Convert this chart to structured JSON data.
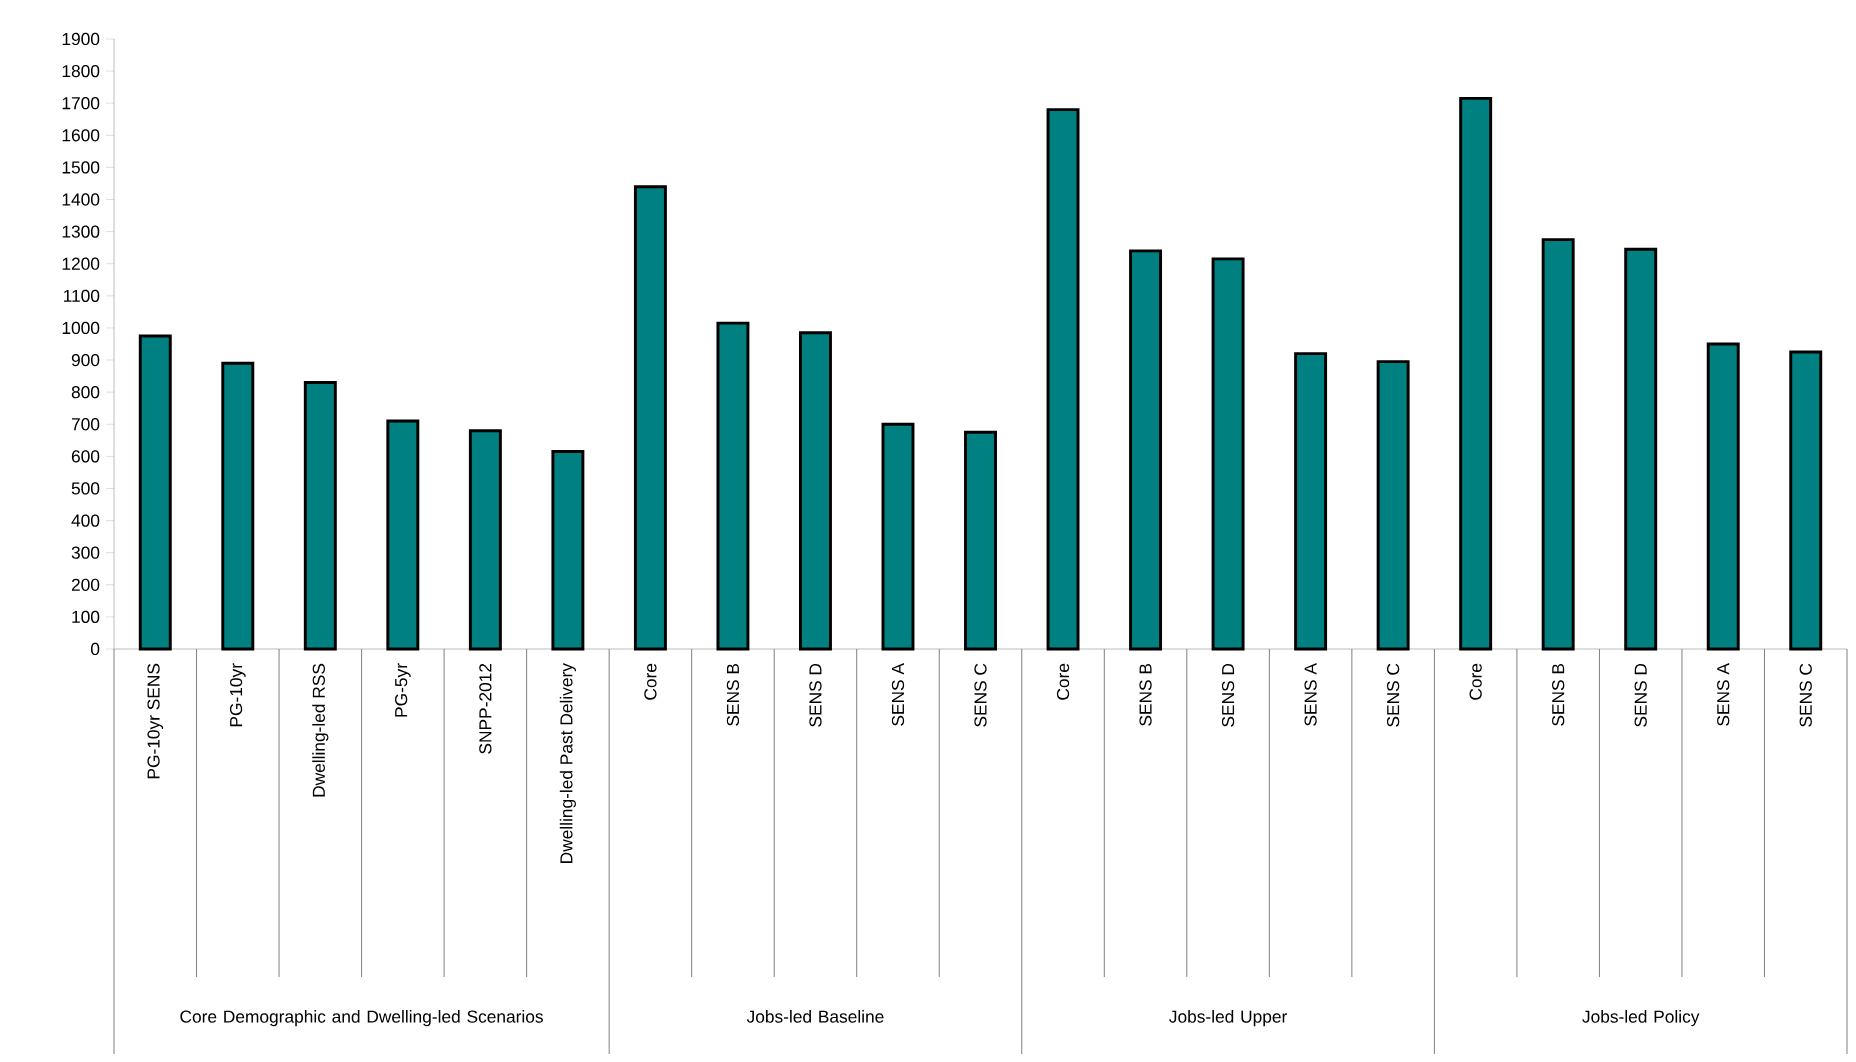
{
  "chart_data": {
    "type": "bar",
    "categories": [
      "PG-10yr SENS",
      "PG-10yr",
      "Dwelling-led RSS",
      "PG-5yr",
      "SNPP-2012",
      "Dwelling-led Past Delivery",
      "Core",
      "SENS B",
      "SENS D",
      "SENS A",
      "SENS C",
      "Core",
      "SENS B",
      "SENS D",
      "SENS A",
      "SENS C",
      "Core",
      "SENS B",
      "SENS D",
      "SENS A",
      "SENS C"
    ],
    "values": [
      975,
      890,
      830,
      710,
      680,
      615,
      1440,
      1015,
      985,
      700,
      675,
      1680,
      1240,
      1215,
      920,
      895,
      1715,
      1275,
      1245,
      950,
      925
    ],
    "color": "#008080",
    "ylim": [
      0,
      1900
    ],
    "yticks": [
      0,
      100,
      200,
      300,
      400,
      500,
      600,
      700,
      800,
      900,
      1000,
      1100,
      1200,
      1300,
      1400,
      1500,
      1600,
      1700,
      1800,
      1900
    ],
    "annotations": [
      "Core Demographic and Dwelling-led Scenarios",
      "Jobs-led Baseline",
      "Jobs-led Upper",
      "Jobs-led Policy"
    ]
  }
}
